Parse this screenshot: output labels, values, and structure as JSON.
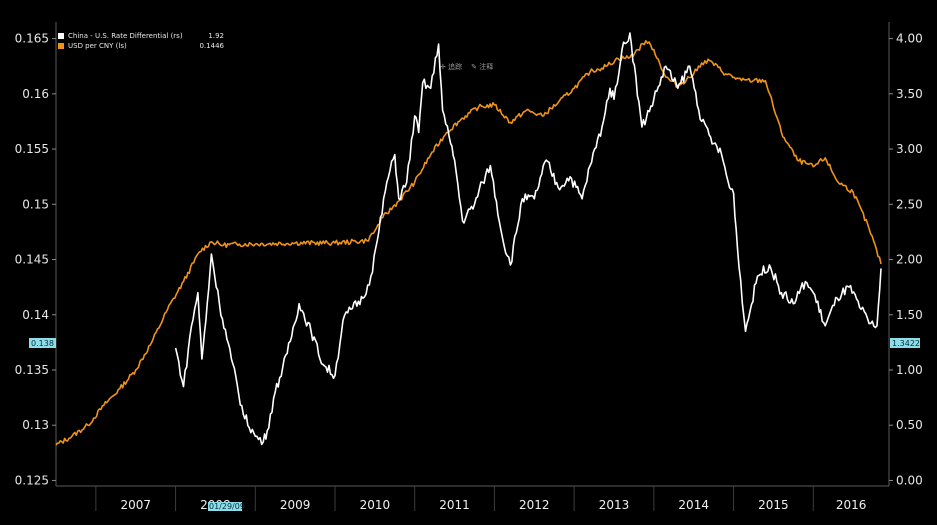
{
  "legend": {
    "items": [
      {
        "name": "China - U.S. Rate Differential (rs)",
        "value": "1.92",
        "color": "#ffffff"
      },
      {
        "name": "USD per CNY (ls)",
        "value": "0.1446",
        "color": "#f0931a"
      }
    ]
  },
  "toolbar": {
    "track_label": "追踪",
    "annotate_label": "注释",
    "track_icon": "crosshair-icon",
    "annotate_icon": "pencil-icon"
  },
  "tags": {
    "left": "0.138",
    "right": "1.3422",
    "bottom": "01/29/09"
  },
  "colors": {
    "background": "#000000",
    "cny": "#f0931a",
    "diff": "#ffffff",
    "tag": "#8fdde8"
  },
  "chart_data": {
    "type": "line",
    "x_axis": {
      "labels": [
        "2007",
        "2008",
        "2009",
        "2010",
        "2011",
        "2012",
        "2013",
        "2014",
        "2015",
        "2016"
      ],
      "range": [
        2006.5,
        2016.95
      ]
    },
    "y_left": {
      "ticks": [
        "0.165",
        "0.16",
        "0.155",
        "0.15",
        "0.145",
        "0.14",
        "0.135",
        "0.13",
        "0.125"
      ],
      "range": [
        0.1245,
        0.1665
      ]
    },
    "y_right": {
      "ticks": [
        "4.00",
        "3.50",
        "3.00",
        "2.50",
        "2.00",
        "1.50",
        "1.00",
        "0.50",
        "0.00"
      ],
      "range": [
        -0.05,
        4.15
      ]
    },
    "series": [
      {
        "name": "USD per CNY (ls)",
        "axis": "left",
        "color": "#f0931a",
        "x": [
          2006.5,
          2006.7,
          2006.9,
          2007.1,
          2007.3,
          2007.5,
          2007.7,
          2007.9,
          2008.1,
          2008.3,
          2008.45,
          2008.6,
          2008.8,
          2009.0,
          2009.5,
          2010.0,
          2010.4,
          2010.5,
          2010.6,
          2010.8,
          2011.0,
          2011.2,
          2011.4,
          2011.6,
          2011.8,
          2012.0,
          2012.2,
          2012.4,
          2012.6,
          2012.8,
          2013.0,
          2013.2,
          2013.4,
          2013.55,
          2013.7,
          2013.8,
          2013.9,
          2014.0,
          2014.15,
          2014.3,
          2014.5,
          2014.6,
          2014.7,
          2014.9,
          2015.1,
          2015.25,
          2015.4,
          2015.6,
          2015.8,
          2016.0,
          2016.15,
          2016.3,
          2016.5,
          2016.7,
          2016.85
        ],
        "y": [
          0.1282,
          0.129,
          0.13,
          0.1318,
          0.1333,
          0.135,
          0.1375,
          0.1405,
          0.143,
          0.1457,
          0.1466,
          0.1463,
          0.1464,
          0.1464,
          0.1465,
          0.1465,
          0.1467,
          0.1476,
          0.1488,
          0.1503,
          0.152,
          0.1545,
          0.1565,
          0.1578,
          0.1588,
          0.159,
          0.1574,
          0.1585,
          0.158,
          0.1592,
          0.1605,
          0.162,
          0.1625,
          0.1632,
          0.1633,
          0.164,
          0.1648,
          0.164,
          0.1615,
          0.1607,
          0.1618,
          0.1628,
          0.163,
          0.1618,
          0.1612,
          0.1612,
          0.1612,
          0.1565,
          0.154,
          0.1534,
          0.1542,
          0.1521,
          0.1511,
          0.1478,
          0.1446
        ]
      },
      {
        "name": "China - U.S. Rate Differential (rs)",
        "axis": "right",
        "color": "#ffffff",
        "x": [
          2008.0,
          2008.1,
          2008.2,
          2008.28,
          2008.33,
          2008.38,
          2008.45,
          2008.55,
          2008.7,
          2008.85,
          2009.0,
          2009.1,
          2009.15,
          2009.25,
          2009.4,
          2009.55,
          2009.7,
          2009.85,
          2010.0,
          2010.1,
          2010.2,
          2010.35,
          2010.45,
          2010.55,
          2010.65,
          2010.75,
          2010.8,
          2010.9,
          2011.0,
          2011.05,
          2011.1,
          2011.2,
          2011.3,
          2011.35,
          2011.45,
          2011.5,
          2011.6,
          2011.75,
          2011.85,
          2011.95,
          2012.1,
          2012.2,
          2012.35,
          2012.5,
          2012.65,
          2012.8,
          2012.95,
          2013.1,
          2013.2,
          2013.35,
          2013.45,
          2013.5,
          2013.6,
          2013.7,
          2013.85,
          2014.0,
          2014.15,
          2014.3,
          2014.45,
          2014.6,
          2014.75,
          2014.85,
          2014.95,
          2015.0,
          2015.05,
          2015.15,
          2015.3,
          2015.45,
          2015.6,
          2015.75,
          2015.9,
          2016.0,
          2016.15,
          2016.3,
          2016.45,
          2016.6,
          2016.7,
          2016.8,
          2016.85
        ],
        "y": [
          1.2,
          0.85,
          1.4,
          1.7,
          1.1,
          1.45,
          2.05,
          1.6,
          1.1,
          0.6,
          0.4,
          0.35,
          0.45,
          0.8,
          1.15,
          1.6,
          1.35,
          1.05,
          0.95,
          1.45,
          1.55,
          1.65,
          1.85,
          2.25,
          2.7,
          2.95,
          2.55,
          2.7,
          3.3,
          3.15,
          3.6,
          3.55,
          3.95,
          3.35,
          3.05,
          2.9,
          2.35,
          2.5,
          2.7,
          2.85,
          2.2,
          1.95,
          2.55,
          2.55,
          2.9,
          2.65,
          2.75,
          2.55,
          2.85,
          3.2,
          3.55,
          3.45,
          3.9,
          4.05,
          3.2,
          3.45,
          3.75,
          3.55,
          3.75,
          3.25,
          3.05,
          2.95,
          2.65,
          2.6,
          2.1,
          1.35,
          1.85,
          1.95,
          1.7,
          1.6,
          1.8,
          1.7,
          1.4,
          1.65,
          1.75,
          1.55,
          1.42,
          1.4,
          1.92
        ]
      }
    ]
  }
}
